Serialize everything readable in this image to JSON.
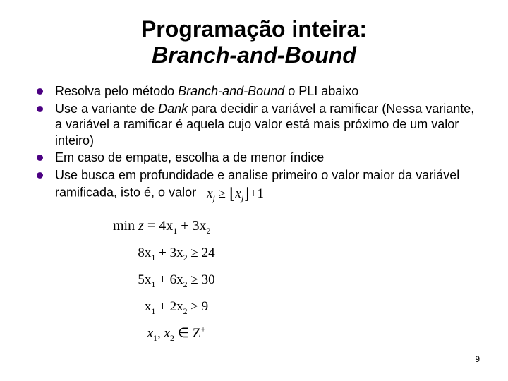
{
  "title": "Programação inteira:",
  "subtitle": "Branch-and-Bound",
  "bullets": [
    {
      "pre": "Resolva pelo método ",
      "em": "Branch-and-Bound",
      "post": " o PLI abaixo"
    },
    {
      "pre": "Use a variante de ",
      "em": "Dank",
      "post": " para decidir a variável a ramificar (Nessa variante, a variável a ramificar é aquela cujo valor está mais próximo de um valor inteiro)"
    },
    {
      "pre": "Em caso de empate, escolha a de menor índice",
      "em": "",
      "post": ""
    },
    {
      "pre": "Use busca em profundidade e analise primeiro o valor maior da variável ramificada, isto é, o valor",
      "em": "",
      "post": ""
    }
  ],
  "floor_expr": {
    "var": "x",
    "sub": "j",
    "op": "≥",
    "plus": "+1"
  },
  "math": {
    "objective_prefix": "min ",
    "objective_var": "z",
    "objective_eq": " = 4x",
    "objective_s1": "1",
    "objective_mid": " + 3x",
    "objective_s2": "2",
    "c1": {
      "a": "8x",
      "s1": "1",
      "b": " + 3x",
      "s2": "2",
      "rhs": " ≥ 24"
    },
    "c2": {
      "a": "5x",
      "s1": "1",
      "b": " + 6x",
      "s2": "2",
      "rhs": " ≥ 30"
    },
    "c3": {
      "a": "x",
      "s1": "1",
      "b": " + 2x",
      "s2": "2",
      "rhs": " ≥ 9"
    },
    "domain": {
      "a": "x",
      "s1": "1",
      "mid": ", x",
      "s2": "2",
      "in": " ∈ Z",
      "sup": "+"
    }
  },
  "page_number": "9",
  "colors": {
    "bullet": "#4b0082",
    "text": "#000000",
    "background": "#ffffff"
  },
  "fonts": {
    "title_size": 32,
    "body_size": 18,
    "math_size": 20
  }
}
